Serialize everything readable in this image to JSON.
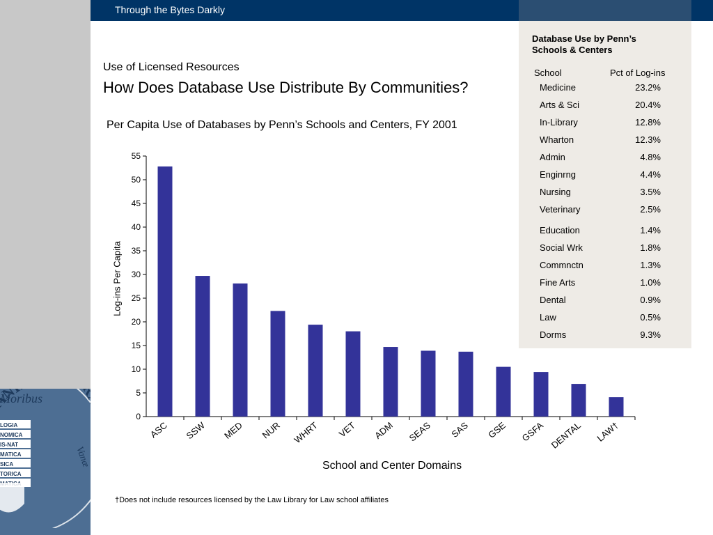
{
  "header": {
    "title": "Through the Bytes Darkly"
  },
  "section_label": "Use of Licensed Resources",
  "main_title": "How Does Database Use Distribute By Communities?",
  "footnote": "†Does not include resources licensed by the Law Library for Law school affiliates",
  "seal_text": {
    "ring": "ENNSYLVANIENSIS CVRATORVM",
    "word_left": "Moribus",
    "word_right": "Vanæ",
    "banners": [
      "LOGIA",
      "NOMICA",
      "IS-NAT",
      "MATICA",
      "SICA",
      "TORICA",
      "MATICA"
    ]
  },
  "colors": {
    "bar": "#333399",
    "header": "#003466",
    "panel": "#eeebe6"
  },
  "chart_data": {
    "type": "bar",
    "title": "Per Capita Use of Databases by Penn’s Schools and Centers, FY 2001",
    "xlabel": "School and Center Domains",
    "ylabel": "Log-ins Per Capita",
    "ylim": [
      0,
      55
    ],
    "yticks": [
      0,
      5,
      10,
      15,
      20,
      25,
      30,
      35,
      40,
      45,
      50,
      55
    ],
    "grid": false,
    "categories": [
      "ASC",
      "SSW",
      "MED",
      "NUR",
      "WHRT",
      "VET",
      "ADM",
      "SEAS",
      "SAS",
      "GSE",
      "GSFA",
      "DENTAL",
      "LAW†"
    ],
    "values": [
      52.8,
      29.7,
      28.1,
      22.3,
      19.4,
      18.0,
      14.7,
      13.9,
      13.7,
      10.5,
      9.4,
      6.9,
      4.1
    ]
  },
  "table": {
    "title": "Database Use by Penn’s Schools & Centers",
    "headers": {
      "school": "School",
      "pct": "Pct of Log-ins"
    },
    "rows": [
      {
        "school": "Medicine",
        "pct": "23.2%"
      },
      {
        "school": "Arts & Sci",
        "pct": "20.4%"
      },
      {
        "school": "In-Library",
        "pct": "12.8%"
      },
      {
        "school": "Wharton",
        "pct": "12.3%"
      },
      {
        "school": "Admin",
        "pct": "4.8%"
      },
      {
        "school": "Enginrng",
        "pct": "4.4%"
      },
      {
        "school": "Nursing",
        "pct": "3.5%"
      },
      {
        "school": "Veterinary",
        "pct": "2.5%"
      },
      {
        "school": "Education",
        "pct": "1.4%"
      },
      {
        "school": "Social Wrk",
        "pct": "1.8%"
      },
      {
        "school": "Commnctn",
        "pct": "1.3%"
      },
      {
        "school": "Fine Arts",
        "pct": "1.0%"
      },
      {
        "school": "Dental",
        "pct": "0.9%"
      },
      {
        "school": "Law",
        "pct": "0.5%"
      },
      {
        "school": "Dorms",
        "pct": "9.3%"
      }
    ]
  }
}
